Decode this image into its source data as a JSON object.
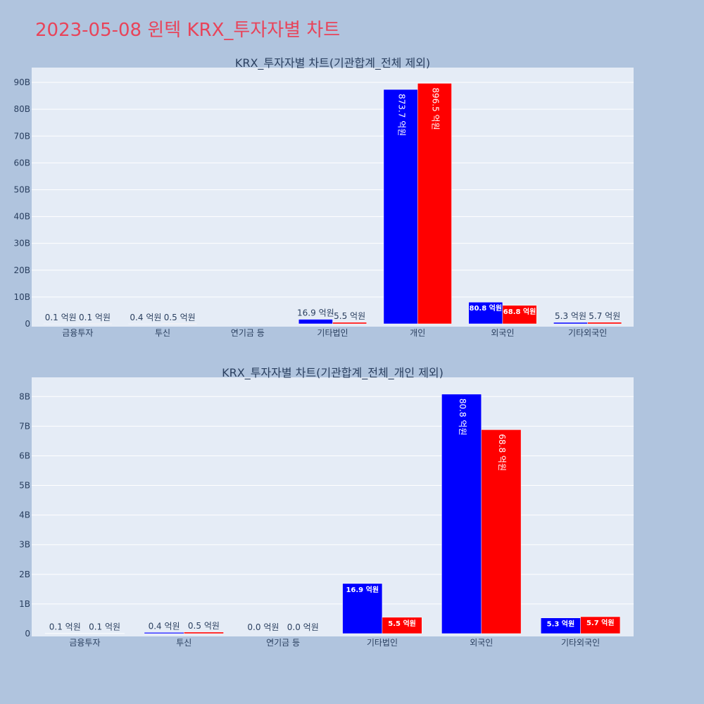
{
  "page": {
    "title": "2023-05-08 윈텍 KRX_투자자별 차트"
  },
  "colors": {
    "background": "#b0c4de",
    "plot_background": "#e5ecf6",
    "gridline": "#ffffff",
    "title": "#e8445a",
    "text": "#2a3f5f",
    "series_buy": "#0000ff",
    "series_sell": "#ff0000"
  },
  "chart_data": [
    {
      "type": "bar",
      "title": "KRX_투자자별 차트(기관합계_전체 제외)",
      "xlabel": "",
      "ylabel": "",
      "ylim": [
        0,
        95
      ],
      "y_unit": "B",
      "yticks": [
        0,
        10,
        20,
        30,
        40,
        50,
        60,
        70,
        80,
        90
      ],
      "ytick_labels": [
        "0",
        "10B",
        "20B",
        "30B",
        "40B",
        "50B",
        "60B",
        "70B",
        "80B",
        "90B"
      ],
      "grid": true,
      "legend": "none",
      "categories": [
        "금융투자",
        "투신",
        "연기금 등",
        "기타법인",
        "개인",
        "외국인",
        "기타외국인"
      ],
      "series": [
        {
          "color": "#0000ff",
          "values": [
            0.01,
            0.04,
            null,
            1.69,
            87.37,
            8.08,
            0.53
          ],
          "labels": [
            "0.1 억원",
            "0.4 억원",
            null,
            "16.9 억원",
            "873.7 억원",
            "80.8 억원",
            "5.3 억원"
          ]
        },
        {
          "color": "#ff0000",
          "values": [
            0.01,
            0.05,
            null,
            0.55,
            89.65,
            6.88,
            0.57
          ],
          "labels": [
            "0.1 억원",
            "0.5 억원",
            null,
            "5.5 억원",
            "896.5 억원",
            "68.8 억원",
            "5.7 억원"
          ]
        }
      ]
    },
    {
      "type": "bar",
      "title": "KRX_투자자별 차트(기관합계_전체_개인 제외)",
      "xlabel": "",
      "ylabel": "",
      "ylim": [
        0,
        8.6
      ],
      "y_unit": "B",
      "yticks": [
        0,
        1,
        2,
        3,
        4,
        5,
        6,
        7,
        8
      ],
      "ytick_labels": [
        "0",
        "1B",
        "2B",
        "3B",
        "4B",
        "5B",
        "6B",
        "7B",
        "8B"
      ],
      "grid": true,
      "legend": "none",
      "categories": [
        "금융투자",
        "투신",
        "연기금 등",
        "기타법인",
        "외국인",
        "기타외국인"
      ],
      "series": [
        {
          "color": "#0000ff",
          "values": [
            0.01,
            0.04,
            0.0,
            1.69,
            8.08,
            0.53
          ],
          "labels": [
            "0.1 억원",
            "0.4 억원",
            "0.0 억원",
            "16.9 억원",
            "80.8 억원",
            "5.3 억원"
          ]
        },
        {
          "color": "#ff0000",
          "values": [
            0.01,
            0.05,
            0.0,
            0.55,
            6.88,
            0.57
          ],
          "labels": [
            "0.1 억원",
            "0.5 억원",
            "0.0 억원",
            "5.5 억원",
            "68.8 억원",
            "5.7 억원"
          ]
        }
      ]
    }
  ]
}
